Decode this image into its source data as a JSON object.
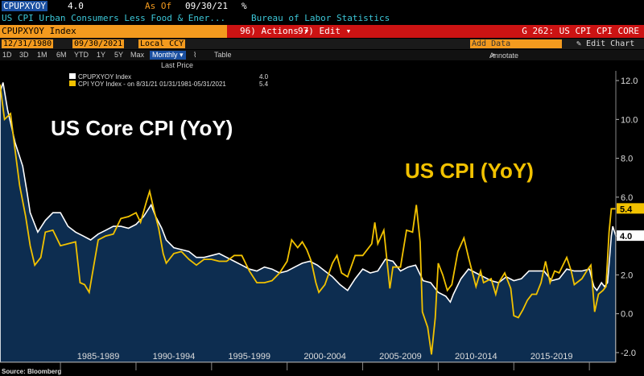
{
  "header": {
    "ticker": "CPUPXYOY",
    "last_value": "4.0",
    "as_of_label": "As Of",
    "as_of_date": "09/30/21",
    "pct_symbol": "%",
    "description": "US CPI Urban Consumers Less Food & Ener...",
    "source": "Bureau of Labor Statistics",
    "index_field": "CPUPXYOY Index",
    "actions_label": "96) Actions ▾",
    "edit_label": "97) Edit ▾",
    "chart_id": "G 262: US CPI CPI CORE",
    "start_date": "12/31/1980",
    "end_date": "09/30/2021",
    "currency": "Local CCY",
    "add_data": "Add Data",
    "edit_chart": "Edit Chart",
    "annotate": "Annotate"
  },
  "toolbar": {
    "periods": [
      "1D",
      "3D",
      "1M",
      "6M",
      "YTD",
      "1Y",
      "5Y",
      "Max"
    ],
    "frequency": "Monthly ▾",
    "table_label": "Table"
  },
  "legend": {
    "header": "Last Price",
    "items": [
      {
        "name": "CPUPXYOY Index",
        "value": "4.0"
      },
      {
        "name": "CPI YOY Index - on 8/31/21 01/31/1981-05/31/2021",
        "value": "5.4"
      }
    ]
  },
  "footer": {
    "source_note": "Source: Bloomberg"
  },
  "colors": {
    "core": "#ffffff",
    "headline": "#f2c200",
    "area": "#0d2d50",
    "badge_yellow": "#f2c200"
  },
  "chart_data": {
    "type": "line",
    "title_core": "US Core CPI (YoY)",
    "title_headline": "US CPI (YoY)",
    "x_range": [
      1981.0,
      2021.75
    ],
    "ylim": [
      -2.5,
      12.5
    ],
    "y_ticks": [
      -2.0,
      0.0,
      2.0,
      4.0,
      6.0,
      8.0,
      10.0,
      12.0
    ],
    "y_tick_labels": [
      "-2.0",
      "0.0",
      "2.0",
      "4.0",
      "6.0",
      "8.0",
      "10.0",
      "12.0"
    ],
    "x_tick_labels": [
      {
        "label": "1985-1989",
        "x": 1987.5
      },
      {
        "label": "1990-1994",
        "x": 1992.5
      },
      {
        "label": "1995-1999",
        "x": 1997.5
      },
      {
        "label": "2000-2004",
        "x": 2002.5
      },
      {
        "label": "2005-2009",
        "x": 2007.5
      },
      {
        "label": "2010-2014",
        "x": 2012.5
      },
      {
        "label": "2015-2019",
        "x": 2017.5
      }
    ],
    "x_dividers": [
      1985,
      1990,
      1995,
      2000,
      2005,
      2010,
      2015,
      2020
    ],
    "series": [
      {
        "name": "CPUPXYOY Index",
        "last": 4.0,
        "points": [
          [
            1981.0,
            11.4
          ],
          [
            1981.2,
            11.9
          ],
          [
            1981.5,
            10.5
          ],
          [
            1981.8,
            9.5
          ],
          [
            1982.0,
            8.8
          ],
          [
            1982.5,
            7.6
          ],
          [
            1982.8,
            6.2
          ],
          [
            1983.0,
            5.2
          ],
          [
            1983.5,
            4.2
          ],
          [
            1984.0,
            4.8
          ],
          [
            1984.5,
            5.2
          ],
          [
            1985.0,
            5.2
          ],
          [
            1985.5,
            4.5
          ],
          [
            1986.0,
            4.2
          ],
          [
            1986.5,
            4.0
          ],
          [
            1987.0,
            3.8
          ],
          [
            1987.5,
            4.1
          ],
          [
            1988.0,
            4.3
          ],
          [
            1988.5,
            4.5
          ],
          [
            1989.0,
            4.5
          ],
          [
            1989.5,
            4.4
          ],
          [
            1990.0,
            4.6
          ],
          [
            1990.5,
            5.0
          ],
          [
            1991.0,
            5.6
          ],
          [
            1991.3,
            5.0
          ],
          [
            1991.7,
            4.4
          ],
          [
            1992.0,
            3.8
          ],
          [
            1992.5,
            3.4
          ],
          [
            1993.0,
            3.3
          ],
          [
            1993.5,
            3.2
          ],
          [
            1994.0,
            2.9
          ],
          [
            1994.5,
            2.9
          ],
          [
            1995.0,
            3.0
          ],
          [
            1995.5,
            3.1
          ],
          [
            1996.0,
            2.9
          ],
          [
            1996.5,
            2.7
          ],
          [
            1997.0,
            2.5
          ],
          [
            1997.5,
            2.3
          ],
          [
            1998.0,
            2.2
          ],
          [
            1998.5,
            2.4
          ],
          [
            1999.0,
            2.3
          ],
          [
            1999.5,
            2.1
          ],
          [
            2000.0,
            2.2
          ],
          [
            2000.5,
            2.4
          ],
          [
            2001.0,
            2.6
          ],
          [
            2001.5,
            2.7
          ],
          [
            2002.0,
            2.5
          ],
          [
            2002.5,
            2.2
          ],
          [
            2003.0,
            1.9
          ],
          [
            2003.5,
            1.5
          ],
          [
            2004.0,
            1.2
          ],
          [
            2004.5,
            1.8
          ],
          [
            2005.0,
            2.3
          ],
          [
            2005.5,
            2.1
          ],
          [
            2006.0,
            2.2
          ],
          [
            2006.5,
            2.8
          ],
          [
            2007.0,
            2.7
          ],
          [
            2007.5,
            2.2
          ],
          [
            2008.0,
            2.4
          ],
          [
            2008.5,
            2.5
          ],
          [
            2009.0,
            1.7
          ],
          [
            2009.5,
            1.6
          ],
          [
            2010.0,
            1.1
          ],
          [
            2010.5,
            0.9
          ],
          [
            2010.8,
            0.6
          ],
          [
            2011.0,
            1.0
          ],
          [
            2011.5,
            1.8
          ],
          [
            2012.0,
            2.3
          ],
          [
            2012.5,
            2.1
          ],
          [
            2013.0,
            1.9
          ],
          [
            2013.5,
            1.7
          ],
          [
            2014.0,
            1.6
          ],
          [
            2014.5,
            1.9
          ],
          [
            2015.0,
            1.7
          ],
          [
            2015.5,
            1.8
          ],
          [
            2016.0,
            2.2
          ],
          [
            2016.5,
            2.2
          ],
          [
            2017.0,
            2.2
          ],
          [
            2017.5,
            1.7
          ],
          [
            2018.0,
            1.8
          ],
          [
            2018.5,
            2.3
          ],
          [
            2019.0,
            2.2
          ],
          [
            2019.5,
            2.2
          ],
          [
            2020.0,
            2.3
          ],
          [
            2020.3,
            1.4
          ],
          [
            2020.5,
            1.2
          ],
          [
            2020.8,
            1.6
          ],
          [
            2021.0,
            1.4
          ],
          [
            2021.2,
            1.6
          ],
          [
            2021.35,
            3.0
          ],
          [
            2021.45,
            4.0
          ],
          [
            2021.55,
            4.5
          ],
          [
            2021.75,
            4.0
          ]
        ]
      },
      {
        "name": "CPI YOY Index",
        "last": 5.4,
        "points": [
          [
            1981.0,
            11.8
          ],
          [
            1981.3,
            10.0
          ],
          [
            1981.7,
            10.3
          ],
          [
            1982.0,
            8.4
          ],
          [
            1982.3,
            6.6
          ],
          [
            1982.7,
            5.0
          ],
          [
            1983.0,
            3.5
          ],
          [
            1983.3,
            2.5
          ],
          [
            1983.7,
            2.9
          ],
          [
            1984.0,
            4.2
          ],
          [
            1984.5,
            4.3
          ],
          [
            1985.0,
            3.5
          ],
          [
            1985.5,
            3.6
          ],
          [
            1986.0,
            3.7
          ],
          [
            1986.3,
            1.6
          ],
          [
            1986.6,
            1.5
          ],
          [
            1986.9,
            1.1
          ],
          [
            1987.1,
            2.0
          ],
          [
            1987.5,
            3.8
          ],
          [
            1988.0,
            4.0
          ],
          [
            1988.5,
            4.1
          ],
          [
            1989.0,
            4.9
          ],
          [
            1989.5,
            5.0
          ],
          [
            1990.0,
            5.2
          ],
          [
            1990.3,
            4.7
          ],
          [
            1990.7,
            5.8
          ],
          [
            1990.9,
            6.3
          ],
          [
            1991.2,
            5.3
          ],
          [
            1991.5,
            4.4
          ],
          [
            1991.8,
            3.1
          ],
          [
            1992.0,
            2.6
          ],
          [
            1992.5,
            3.1
          ],
          [
            1993.0,
            3.2
          ],
          [
            1993.5,
            2.8
          ],
          [
            1994.0,
            2.5
          ],
          [
            1994.5,
            2.8
          ],
          [
            1995.0,
            2.8
          ],
          [
            1995.5,
            2.7
          ],
          [
            1996.0,
            2.7
          ],
          [
            1996.5,
            3.0
          ],
          [
            1997.0,
            3.0
          ],
          [
            1997.5,
            2.2
          ],
          [
            1998.0,
            1.6
          ],
          [
            1998.5,
            1.6
          ],
          [
            1999.0,
            1.7
          ],
          [
            1999.5,
            2.1
          ],
          [
            2000.0,
            2.7
          ],
          [
            2000.3,
            3.8
          ],
          [
            2000.7,
            3.4
          ],
          [
            2001.0,
            3.7
          ],
          [
            2001.3,
            3.3
          ],
          [
            2001.6,
            2.7
          ],
          [
            2001.9,
            1.6
          ],
          [
            2002.1,
            1.1
          ],
          [
            2002.5,
            1.5
          ],
          [
            2003.0,
            2.6
          ],
          [
            2003.3,
            3.0
          ],
          [
            2003.6,
            2.1
          ],
          [
            2004.0,
            1.9
          ],
          [
            2004.5,
            3.0
          ],
          [
            2005.0,
            3.0
          ],
          [
            2005.6,
            3.6
          ],
          [
            2005.8,
            4.7
          ],
          [
            2006.0,
            3.6
          ],
          [
            2006.4,
            4.3
          ],
          [
            2006.8,
            1.3
          ],
          [
            2007.0,
            2.4
          ],
          [
            2007.5,
            2.4
          ],
          [
            2007.9,
            4.3
          ],
          [
            2008.3,
            4.2
          ],
          [
            2008.55,
            5.6
          ],
          [
            2008.8,
            3.7
          ],
          [
            2008.95,
            0.1
          ],
          [
            2009.3,
            -0.7
          ],
          [
            2009.55,
            -2.1
          ],
          [
            2009.8,
            -0.2
          ],
          [
            2010.0,
            2.6
          ],
          [
            2010.3,
            2.0
          ],
          [
            2010.6,
            1.2
          ],
          [
            2010.9,
            1.5
          ],
          [
            2011.3,
            3.2
          ],
          [
            2011.7,
            3.9
          ],
          [
            2012.0,
            2.9
          ],
          [
            2012.5,
            1.4
          ],
          [
            2012.8,
            2.2
          ],
          [
            2013.0,
            1.6
          ],
          [
            2013.5,
            1.8
          ],
          [
            2013.8,
            1.0
          ],
          [
            2014.0,
            1.6
          ],
          [
            2014.4,
            2.1
          ],
          [
            2014.8,
            1.3
          ],
          [
            2015.0,
            -0.1
          ],
          [
            2015.3,
            -0.2
          ],
          [
            2015.6,
            0.2
          ],
          [
            2015.9,
            0.7
          ],
          [
            2016.2,
            1.0
          ],
          [
            2016.5,
            1.0
          ],
          [
            2016.8,
            1.6
          ],
          [
            2017.1,
            2.7
          ],
          [
            2017.4,
            1.6
          ],
          [
            2017.7,
            2.2
          ],
          [
            2018.0,
            2.1
          ],
          [
            2018.5,
            2.9
          ],
          [
            2018.8,
            2.2
          ],
          [
            2019.0,
            1.5
          ],
          [
            2019.5,
            1.8
          ],
          [
            2019.9,
            2.3
          ],
          [
            2020.1,
            2.5
          ],
          [
            2020.35,
            0.1
          ],
          [
            2020.6,
            1.0
          ],
          [
            2020.9,
            1.2
          ],
          [
            2021.1,
            1.4
          ],
          [
            2021.3,
            4.2
          ],
          [
            2021.45,
            5.4
          ],
          [
            2021.6,
            5.4
          ],
          [
            2021.75,
            5.4
          ]
        ]
      }
    ]
  }
}
